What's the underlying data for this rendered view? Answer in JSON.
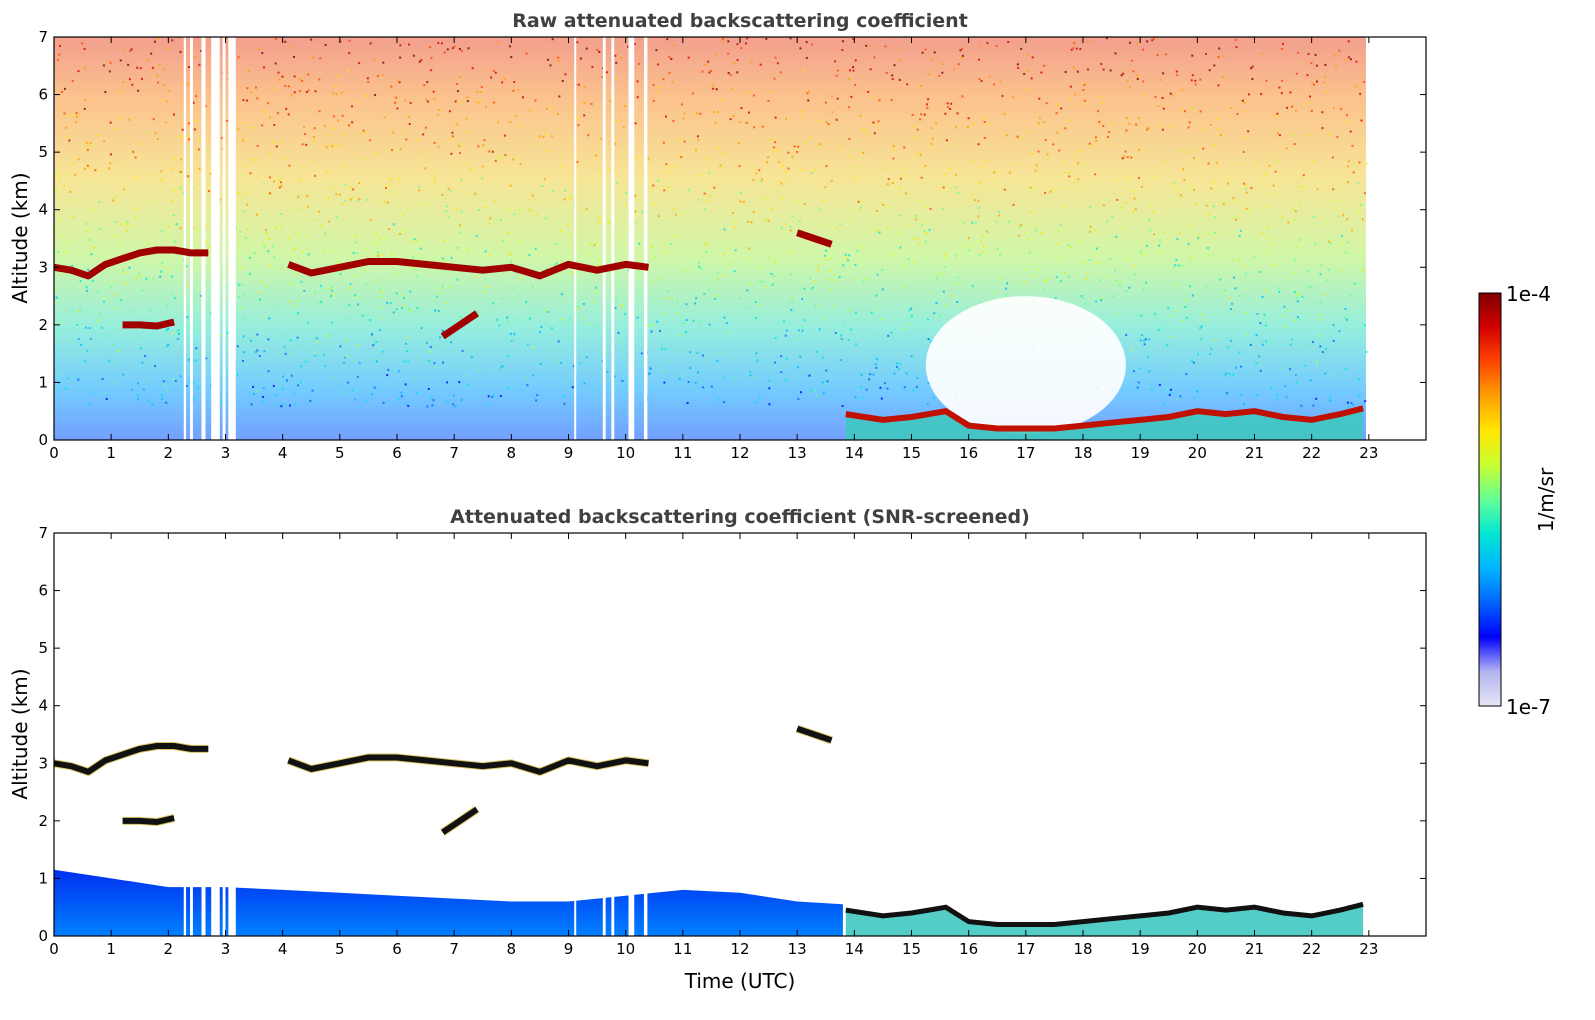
{
  "chart_data": [
    {
      "type": "heatmap",
      "title": "Raw attenuated backscattering coefficient",
      "xlabel": "",
      "ylabel": "Altitude (km)",
      "xlim": [
        0,
        24
      ],
      "ylim": [
        0,
        7
      ],
      "xticks": [
        "0",
        "1",
        "2",
        "3",
        "4",
        "5",
        "6",
        "7",
        "8",
        "9",
        "10",
        "11",
        "12",
        "13",
        "14",
        "15",
        "16",
        "17",
        "18",
        "19",
        "20",
        "21",
        "22",
        "23"
      ],
      "yticks": [
        "0",
        "1",
        "2",
        "3",
        "4",
        "5",
        "6",
        "7"
      ],
      "data_end_hour": 22.95,
      "missing_data_gaps_hours": [
        [
          2.27,
          2.31
        ],
        [
          2.38,
          2.43
        ],
        [
          2.58,
          2.65
        ],
        [
          2.75,
          2.9
        ],
        [
          2.95,
          3.0
        ],
        [
          3.05,
          3.18
        ],
        [
          9.1,
          9.13
        ],
        [
          9.6,
          9.65
        ],
        [
          9.75,
          9.8
        ],
        [
          10.05,
          10.15
        ],
        [
          10.32,
          10.38
        ]
      ],
      "cloud_layers": [
        {
          "t": [
            0,
            0.3,
            0.6,
            0.9,
            1.2,
            1.5,
            1.8,
            2.1,
            2.4,
            2.7
          ],
          "alt_km": [
            3.0,
            2.95,
            2.85,
            3.05,
            3.15,
            3.25,
            3.3,
            3.3,
            3.25,
            3.25
          ]
        },
        {
          "t": [
            4.1,
            4.5,
            5.0,
            5.5,
            6.0,
            6.5,
            7.0,
            7.5,
            8.0,
            8.5,
            9.0,
            9.5,
            10.0,
            10.4
          ],
          "alt_km": [
            3.05,
            2.9,
            3.0,
            3.1,
            3.1,
            3.05,
            3.0,
            2.95,
            3.0,
            2.85,
            3.05,
            2.95,
            3.05,
            3.0
          ]
        },
        {
          "t": [
            1.2,
            1.5,
            1.8,
            2.1
          ],
          "alt_km": [
            2.0,
            2.0,
            1.98,
            2.05
          ]
        },
        {
          "t": [
            6.8,
            7.1,
            7.4
          ],
          "alt_km": [
            1.8,
            2.0,
            2.2
          ]
        },
        {
          "t": [
            13.0,
            13.3,
            13.6
          ],
          "alt_km": [
            3.6,
            3.5,
            3.4
          ]
        }
      ],
      "boundary_layer_top": {
        "t": [
          13.85,
          14.5,
          15.0,
          15.3,
          15.6,
          16.0,
          16.5,
          17.0,
          17.5,
          18.0,
          18.5,
          19.0,
          19.5,
          20.0,
          20.5,
          21.0,
          21.5,
          22.0,
          22.5,
          22.9
        ],
        "alt_km": [
          0.45,
          0.35,
          0.4,
          0.45,
          0.5,
          0.25,
          0.2,
          0.2,
          0.2,
          0.25,
          0.3,
          0.35,
          0.4,
          0.5,
          0.45,
          0.5,
          0.4,
          0.35,
          0.45,
          0.55
        ]
      }
    },
    {
      "type": "heatmap",
      "title": "Attenuated backscattering coefficient (SNR-screened)",
      "xlabel": "Time (UTC)",
      "ylabel": "Altitude (km)",
      "xlim": [
        0,
        24
      ],
      "ylim": [
        0,
        7
      ],
      "xticks": [
        "0",
        "1",
        "2",
        "3",
        "4",
        "5",
        "6",
        "7",
        "8",
        "9",
        "10",
        "11",
        "12",
        "13",
        "14",
        "15",
        "16",
        "17",
        "18",
        "19",
        "20",
        "21",
        "22",
        "23"
      ],
      "yticks": [
        "0",
        "1",
        "2",
        "3",
        "4",
        "5",
        "6",
        "7"
      ],
      "screened_aerosol_top": {
        "t": [
          0,
          1,
          2,
          3,
          4,
          5,
          6,
          7,
          8,
          9,
          10,
          11,
          12,
          13,
          13.8
        ],
        "alt_km": [
          1.15,
          1.0,
          0.85,
          0.85,
          0.8,
          0.75,
          0.7,
          0.65,
          0.6,
          0.6,
          0.7,
          0.8,
          0.75,
          0.6,
          0.55
        ]
      }
    }
  ],
  "colorbar": {
    "label": "1/m/sr",
    "max_label": "1e-4",
    "min_label": "1e-7",
    "scale": "log",
    "colormap": "jet",
    "colors": [
      "#e6e6f5",
      "#b4b4f0",
      "#0000ff",
      "#0064ff",
      "#00b4ff",
      "#00e6d2",
      "#64ff96",
      "#c8ff32",
      "#ffe600",
      "#ffa000",
      "#ff4600",
      "#d20000",
      "#800000"
    ]
  }
}
